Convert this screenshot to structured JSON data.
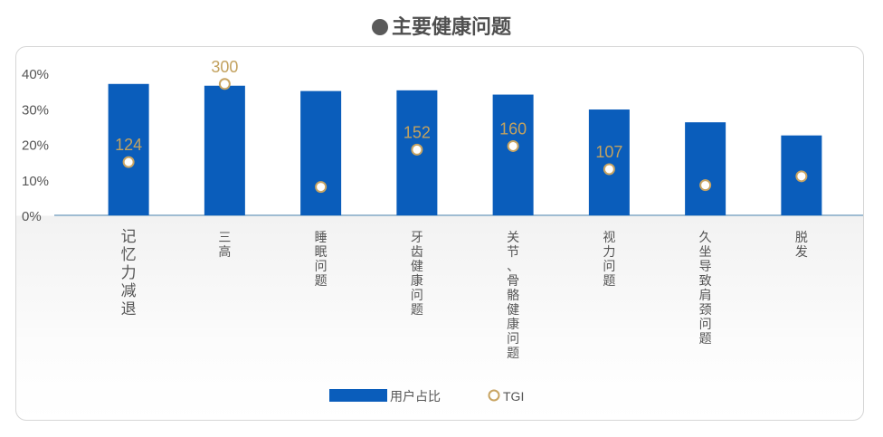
{
  "title": "主要健康问题",
  "colors": {
    "bar": "#0a5dbb",
    "tgi_marker": "#c8a462",
    "tgi_label": "#c3a25f",
    "axis_line": "#9fbcd2",
    "text": "#555555"
  },
  "chart_data": {
    "type": "bar",
    "categories": [
      "记忆力减退",
      "三高",
      "睡眠问题",
      "牙齿健康问题",
      "关节、骨骼健康问题",
      "视力问题",
      "久坐导致肩颈问题",
      "脱发"
    ],
    "y_ticks": [
      "40%",
      "30%",
      "20%",
      "10%",
      "0%"
    ],
    "ylim": [
      0,
      40
    ],
    "series": [
      {
        "name": "用户占比",
        "type": "bar",
        "values": [
          37,
          36.5,
          35,
          35.2,
          34,
          29.8,
          26.2,
          22.5
        ]
      },
      {
        "name": "TGI",
        "type": "scatter",
        "values": [
          124,
          300,
          null,
          152,
          160,
          107,
          null,
          null
        ],
        "marker_level_percent": [
          15,
          37,
          8,
          18.5,
          19.5,
          13,
          8.5,
          11
        ]
      }
    ],
    "legend": {
      "position": "bottom-center",
      "items": [
        "用户占比",
        "TGI"
      ]
    },
    "grid": false
  }
}
